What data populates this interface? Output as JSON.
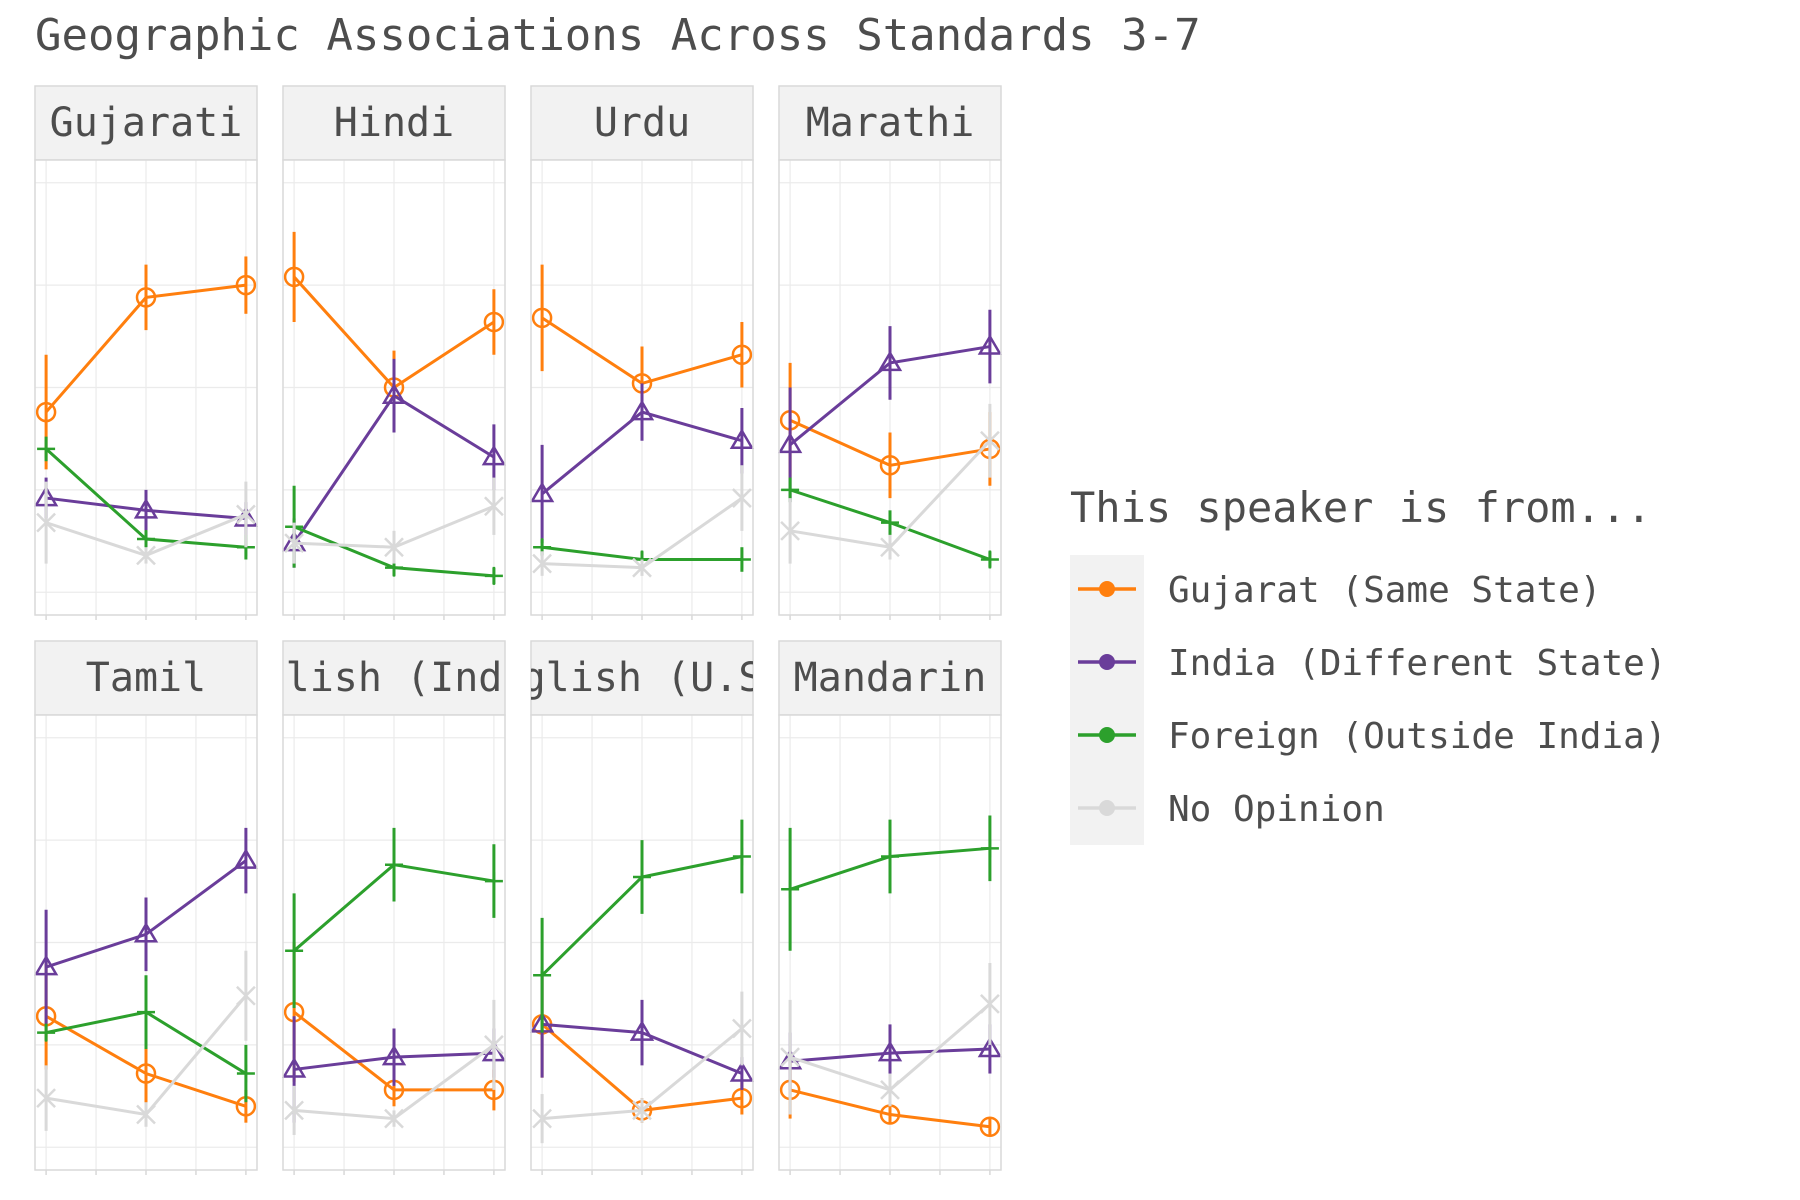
{
  "title": "Geographic Associations Across Standards 3-7",
  "colors": {
    "gujarat": "#ff7f0e",
    "india": "#6a3d9a",
    "foreign": "#2ca02c",
    "noopinion": "#d9d9d9",
    "strip_bg": "#f2f2f2",
    "panel_border": "#d9d9d9",
    "grid": "#ebebeb",
    "text": "#4d4d4d"
  },
  "legend": {
    "title": "This speaker is from...",
    "position": "right",
    "items": [
      {
        "key": "gujarat",
        "label": "Gujarat (Same State)"
      },
      {
        "key": "india",
        "label": "India (Different State)"
      },
      {
        "key": "foreign",
        "label": "Foreign (Outside India)"
      },
      {
        "key": "noopinion",
        "label": "No Opinion"
      }
    ]
  },
  "chart_data": {
    "type": "line",
    "layout": "facet 2 rows x 4 columns",
    "x": [
      3,
      5,
      7
    ],
    "ylim": [
      0,
      1
    ],
    "grid": true,
    "series_order": [
      "gujarat",
      "india",
      "foreign",
      "noopinion"
    ],
    "panels": [
      {
        "strip": "Gujarati",
        "series": {
          "gujarat": {
            "values": [
              0.44,
              0.72,
              0.75
            ],
            "err": [
              0.14,
              0.08,
              0.07
            ]
          },
          "india": {
            "values": [
              0.23,
              0.2,
              0.18
            ],
            "err": [
              0.05,
              0.05,
              0.04
            ]
          },
          "foreign": {
            "values": [
              0.35,
              0.13,
              0.11
            ],
            "err": [
              0.03,
              0.02,
              0.03
            ]
          },
          "noopinion": {
            "values": [
              0.17,
              0.09,
              0.19
            ],
            "err": [
              0.1,
              0.02,
              0.08
            ]
          }
        }
      },
      {
        "strip": "Hindi",
        "series": {
          "gujarat": {
            "values": [
              0.77,
              0.5,
              0.66
            ],
            "err": [
              0.11,
              0.09,
              0.08
            ]
          },
          "india": {
            "values": [
              0.12,
              0.48,
              0.33
            ],
            "err": [
              0.06,
              0.09,
              0.08
            ]
          },
          "foreign": {
            "values": [
              0.16,
              0.06,
              0.04
            ],
            "err": [
              0.1,
              0.02,
              0.02
            ]
          },
          "noopinion": {
            "values": [
              0.12,
              0.11,
              0.21
            ],
            "err": [
              0.05,
              0.04,
              0.07
            ]
          }
        }
      },
      {
        "strip": "Urdu",
        "series": {
          "gujarat": {
            "values": [
              0.67,
              0.51,
              0.58
            ],
            "err": [
              0.13,
              0.09,
              0.08
            ]
          },
          "india": {
            "values": [
              0.24,
              0.44,
              0.37
            ],
            "err": [
              0.12,
              0.07,
              0.08
            ]
          },
          "foreign": {
            "values": [
              0.11,
              0.08,
              0.08
            ],
            "err": [
              0.02,
              0.02,
              0.03
            ]
          },
          "noopinion": {
            "values": [
              0.07,
              0.06,
              0.23
            ],
            "err": [
              0.03,
              0.02,
              0.08
            ]
          }
        }
      },
      {
        "strip": "Marathi",
        "series": {
          "gujarat": {
            "values": [
              0.42,
              0.31,
              0.35
            ],
            "err": [
              0.14,
              0.08,
              0.09
            ]
          },
          "india": {
            "values": [
              0.36,
              0.56,
              0.6
            ],
            "err": [
              0.14,
              0.09,
              0.09
            ]
          },
          "foreign": {
            "values": [
              0.25,
              0.17,
              0.08
            ],
            "err": [
              0.03,
              0.03,
              0.02
            ]
          },
          "noopinion": {
            "values": [
              0.15,
              0.11,
              0.37
            ],
            "err": [
              0.08,
              0.03,
              0.09
            ]
          }
        }
      },
      {
        "strip": "Tamil",
        "series": {
          "gujarat": {
            "values": [
              0.32,
              0.18,
              0.1
            ],
            "err": [
              0.13,
              0.08,
              0.04
            ]
          },
          "india": {
            "values": [
              0.44,
              0.52,
              0.7
            ],
            "err": [
              0.14,
              0.09,
              0.08
            ]
          },
          "foreign": {
            "values": [
              0.28,
              0.33,
              0.18
            ],
            "err": [
              0.02,
              0.09,
              0.07
            ]
          },
          "noopinion": {
            "values": [
              0.12,
              0.08,
              0.37
            ],
            "err": [
              0.08,
              0.03,
              0.11
            ]
          }
        }
      },
      {
        "strip": "English (India)",
        "series": {
          "gujarat": {
            "values": [
              0.33,
              0.14,
              0.14
            ],
            "err": [
              0.17,
              0.04,
              0.05
            ]
          },
          "india": {
            "values": [
              0.19,
              0.22,
              0.23
            ],
            "err": [
              0.13,
              0.07,
              0.06
            ]
          },
          "foreign": {
            "values": [
              0.48,
              0.69,
              0.65
            ],
            "err": [
              0.14,
              0.09,
              0.09
            ]
          },
          "noopinion": {
            "values": [
              0.09,
              0.07,
              0.25
            ],
            "err": [
              0.06,
              0.02,
              0.11
            ]
          }
        }
      },
      {
        "strip": "English (U.S.)",
        "series": {
          "gujarat": {
            "values": [
              0.3,
              0.09,
              0.12
            ],
            "err": [
              0.13,
              0.03,
              0.04
            ]
          },
          "india": {
            "values": [
              0.3,
              0.28,
              0.18
            ],
            "err": [
              0.13,
              0.08,
              0.04
            ]
          },
          "foreign": {
            "values": [
              0.42,
              0.66,
              0.71
            ],
            "err": [
              0.14,
              0.09,
              0.09
            ]
          },
          "noopinion": {
            "values": [
              0.07,
              0.09,
              0.29
            ],
            "err": [
              0.06,
              0.03,
              0.09
            ]
          }
        }
      },
      {
        "strip": "Mandarin",
        "series": {
          "gujarat": {
            "values": [
              0.14,
              0.08,
              0.05
            ],
            "err": [
              0.07,
              0.02,
              0.02
            ]
          },
          "india": {
            "values": [
              0.21,
              0.23,
              0.24
            ],
            "err": [
              0.07,
              0.07,
              0.06
            ]
          },
          "foreign": {
            "values": [
              0.63,
              0.71,
              0.73
            ],
            "err": [
              0.15,
              0.09,
              0.08
            ]
          },
          "noopinion": {
            "values": [
              0.22,
              0.14,
              0.35
            ],
            "err": [
              0.14,
              0.04,
              0.1
            ]
          }
        }
      }
    ]
  }
}
